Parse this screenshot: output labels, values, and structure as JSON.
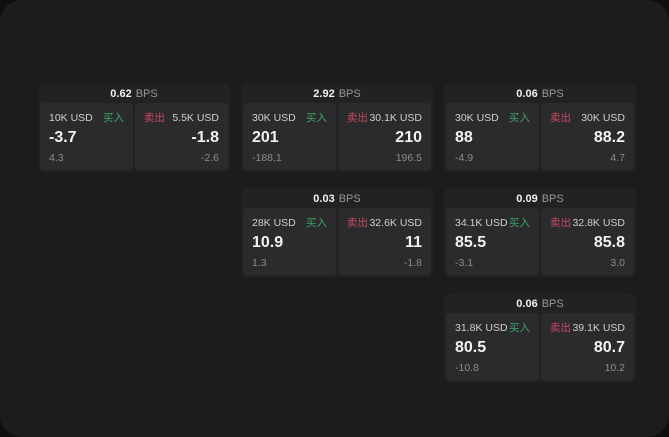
{
  "labels": {
    "bps_unit": "BPS",
    "buy": "买入",
    "sell": "卖出"
  },
  "colors": {
    "buy_green": "#3fa468",
    "sell_red": "#c84a5f",
    "surface_bg": "#1c1c1e",
    "card_bg": "#222224",
    "panel_bg": "#2b2b2d"
  },
  "cards": [
    {
      "row": 1,
      "col": 1,
      "bps": "0.62",
      "buy": {
        "size": "10K USD",
        "value": "-3.7",
        "sub": "4.3"
      },
      "sell": {
        "size": "5.5K USD",
        "value": "-1.8",
        "sub": "-2.6"
      }
    },
    {
      "row": 1,
      "col": 2,
      "bps": "2.92",
      "buy": {
        "size": "30K USD",
        "value": "201",
        "sub": "-188.1"
      },
      "sell": {
        "size": "30.1K USD",
        "value": "210",
        "sub": "196.5"
      }
    },
    {
      "row": 1,
      "col": 3,
      "bps": "0.06",
      "buy": {
        "size": "30K USD",
        "value": "88",
        "sub": "-4.9"
      },
      "sell": {
        "size": "30K USD",
        "value": "88.2",
        "sub": "4.7"
      }
    },
    {
      "row": 2,
      "col": 2,
      "bps": "0.03",
      "buy": {
        "size": "28K USD",
        "value": "10.9",
        "sub": "1.3"
      },
      "sell": {
        "size": "32.6K USD",
        "value": "11",
        "sub": "-1.8"
      }
    },
    {
      "row": 2,
      "col": 3,
      "bps": "0.09",
      "buy": {
        "size": "34.1K USD",
        "value": "85.5",
        "sub": "-3.1"
      },
      "sell": {
        "size": "32.8K USD",
        "value": "85.8",
        "sub": "3.0"
      }
    },
    {
      "row": 3,
      "col": 3,
      "bps": "0.06",
      "buy": {
        "size": "31.8K USD",
        "value": "80.5",
        "sub": "-10.8"
      },
      "sell": {
        "size": "39.1K USD",
        "value": "80.7",
        "sub": "10.2"
      }
    }
  ]
}
